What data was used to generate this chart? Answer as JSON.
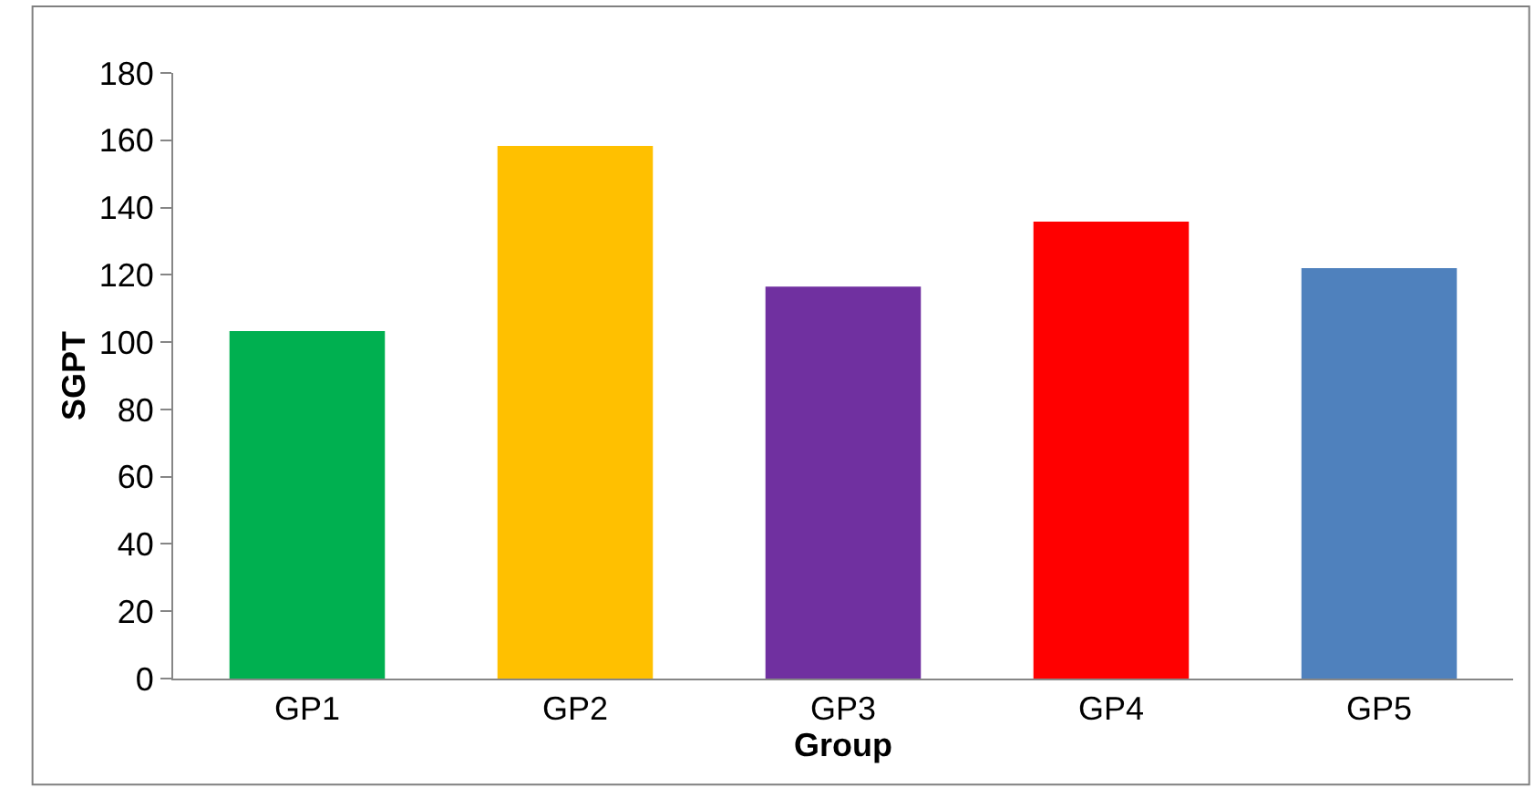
{
  "chart_data": {
    "type": "bar",
    "xlabel": "Group",
    "ylabel": "SGPT",
    "categories": [
      "GP1",
      "GP2",
      "GP3",
      "GP4",
      "GP5"
    ],
    "values": [
      103.3,
      158.3,
      116.5,
      135.8,
      122
    ],
    "colors": [
      "#00b050",
      "#ffc000",
      "#7030a0",
      "#ff0000",
      "#4f81bd"
    ],
    "ylim": [
      0,
      180
    ],
    "yticks": [
      0,
      20,
      40,
      60,
      80,
      100,
      120,
      140,
      160,
      180
    ]
  }
}
